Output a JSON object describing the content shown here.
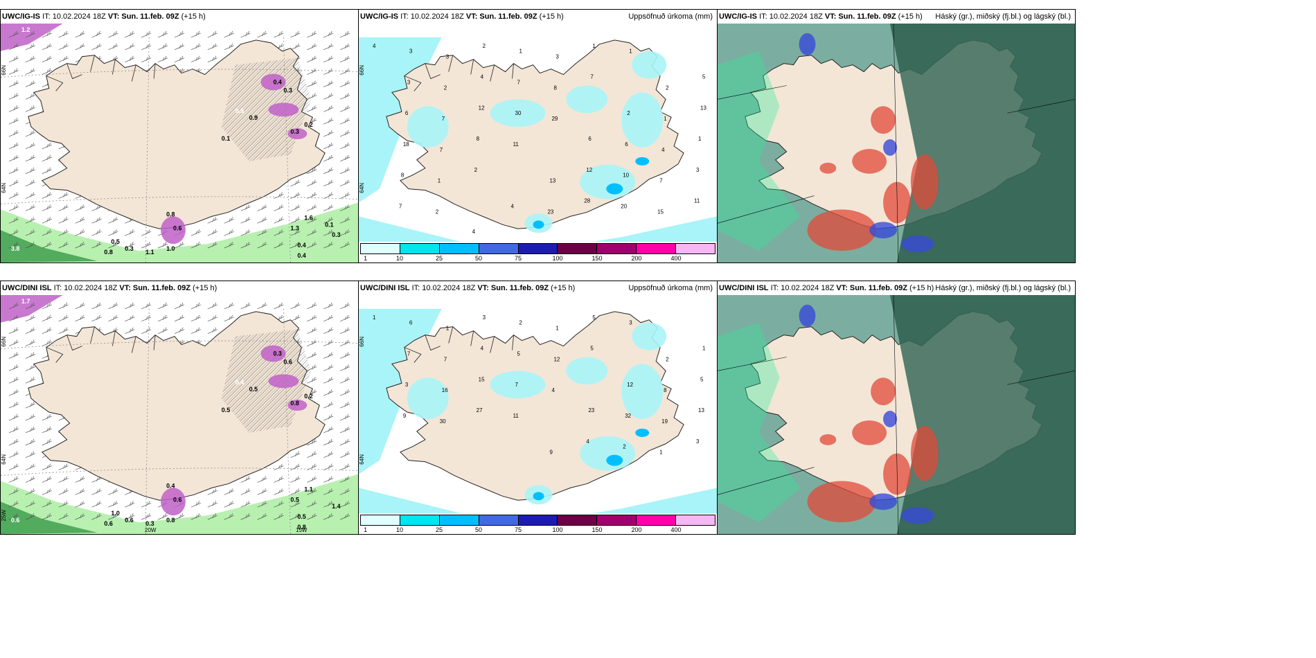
{
  "panels": [
    {
      "model": "UWC/IG-IS",
      "it": "IT: 10.02.2024 18Z",
      "vt_label": "VT:",
      "vt": "Sun. 11.feb. 09Z",
      "lead": "(+15 h)",
      "right_title": "",
      "type": "wind-precip",
      "lat_labels": [
        "66N",
        "64N"
      ],
      "lon_labels": [],
      "values": [
        "1.2",
        "0.5",
        "0.9",
        "0.4",
        "0.3",
        "0.2",
        "0.3",
        "0.1",
        "0.8",
        "0.6",
        "1.0",
        "0.5",
        "0.8",
        "0.3",
        "1.3",
        "0.4",
        "1.1",
        "1.6",
        "0.4",
        "0.3",
        "3.8",
        "0.1"
      ]
    },
    {
      "model": "UWC/IG-IS",
      "it": "IT: 10.02.2024 18Z",
      "vt_label": "VT:",
      "vt": "Sun. 11.feb. 09Z",
      "lead": "(+15 h)",
      "right_title": "Uppsöfnuð úrkoma (mm)",
      "type": "accum",
      "lat_labels": [
        "66N",
        "64N"
      ],
      "lon_labels": [],
      "values": [
        "4",
        "3",
        "3",
        "2",
        "1",
        "3",
        "1",
        "1",
        "2",
        "5",
        "3",
        "2",
        "4",
        "7",
        "8",
        "7",
        "2",
        "1",
        "13",
        "6",
        "7",
        "12",
        "30",
        "29",
        "6",
        "6",
        "4",
        "1",
        "18",
        "7",
        "8",
        "11",
        "13",
        "12",
        "10",
        "7",
        "3",
        "8",
        "1",
        "2",
        "4",
        "23",
        "28",
        "20",
        "15",
        "11",
        "7",
        "2",
        "4"
      ],
      "colorbar": {
        "colors": [
          "#e0ffff",
          "#00e5ee",
          "#00bfff",
          "#4169e1",
          "#1c1cb0",
          "#6b0047",
          "#a0006e",
          "#ff00aa",
          "#f5b8f5"
        ],
        "ticks": [
          "1",
          "10",
          "25",
          "50",
          "75",
          "100",
          "150",
          "200",
          "400"
        ]
      }
    },
    {
      "model": "UWC/IG-IS",
      "it": "IT: 10.02.2024 18Z",
      "vt_label": "VT:",
      "vt": "Sun. 11.feb. 09Z",
      "lead": "(+15 h)",
      "right_title": "Háský (gr.), miðský (fj.bl.) og lágský (bl.)",
      "type": "clouds",
      "lat_labels": [],
      "lon_labels": [],
      "values": []
    },
    {
      "model": "UWC/DINI ISL",
      "it": "IT: 10.02.2024 18Z",
      "vt_label": "VT:",
      "vt": "Sun. 11.feb. 09Z",
      "lead": "(+15 h)",
      "right_title": "",
      "type": "wind-precip",
      "lat_labels": [
        "66N",
        "64N",
        "25W"
      ],
      "lon_labels": [
        "20W",
        "15W"
      ],
      "values": [
        "1.7",
        "0.4",
        "0.5",
        "0.3",
        "0.6",
        "0.2",
        "0.8",
        "0.5",
        "0.4",
        "0.6",
        "0.8",
        "1.0",
        "0.6",
        "0.6",
        "0.5",
        "0.5",
        "0.3",
        "1.1",
        "0.8",
        "1.4",
        "0.6"
      ]
    },
    {
      "model": "UWC/DINI ISL",
      "it": "IT: 10.02.2024 18Z",
      "vt_label": "VT:",
      "vt": "Sun. 11.feb. 09Z",
      "lead": "(+15 h)",
      "right_title": "Uppsöfnuð úrkoma (mm)",
      "type": "accum",
      "lat_labels": [
        "66N",
        "64N"
      ],
      "lon_labels": [],
      "values": [
        "1",
        "6",
        "1",
        "3",
        "2",
        "1",
        "5",
        "3",
        "2",
        "1",
        "7",
        "7",
        "4",
        "5",
        "12",
        "5",
        "12",
        "8",
        "5",
        "3",
        "16",
        "15",
        "7",
        "4",
        "23",
        "32",
        "19",
        "13",
        "9",
        "30",
        "27",
        "11",
        "9",
        "4",
        "2",
        "1",
        "3"
      ],
      "colorbar": {
        "colors": [
          "#e0ffff",
          "#00e5ee",
          "#00bfff",
          "#4169e1",
          "#1c1cb0",
          "#6b0047",
          "#a0006e",
          "#ff00aa",
          "#f5b8f5"
        ],
        "ticks": [
          "1",
          "10",
          "25",
          "50",
          "75",
          "100",
          "150",
          "200",
          "400"
        ]
      }
    },
    {
      "model": "UWC/DINI ISL",
      "it": "IT: 10.02.2024 18Z",
      "vt_label": "VT:",
      "vt": "Sun. 11.feb. 09Z",
      "lead": "(+15 h)",
      "right_title": "Háský (gr.), miðský (fj.bl.) og lágský (bl.)",
      "type": "clouds",
      "lat_labels": [],
      "lon_labels": [],
      "values": []
    }
  ],
  "colors": {
    "land": "#f3e6d7",
    "sea": "#ffffff",
    "precip_purple": "#c060c8",
    "precip_green": "#b8f0b0",
    "accum_cyan": "#a8f4f8",
    "cloud_high": "#3a6a5a",
    "cloud_mid": "#e24a3a",
    "cloud_low": "#3a4ad8"
  }
}
